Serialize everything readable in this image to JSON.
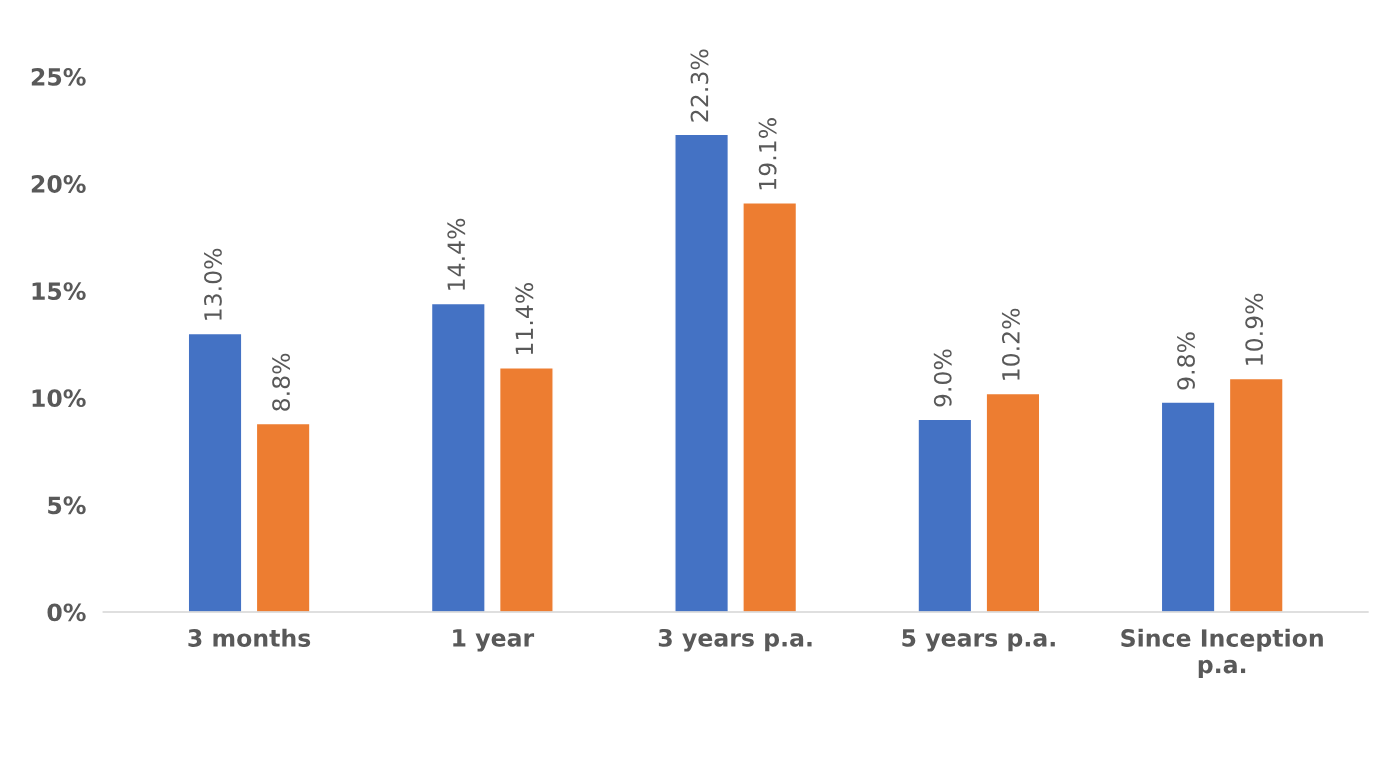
{
  "chart_data": {
    "type": "bar",
    "categories": [
      "3 months",
      "1 year",
      "3 years p.a.",
      "5 years p.a.",
      "Since Inception\np.a."
    ],
    "series": [
      {
        "color": "#4472c4",
        "values": [
          13.0,
          14.4,
          22.3,
          9.0,
          9.8
        ],
        "value_labels": [
          "13.0%",
          "14.4%",
          "22.3%",
          "9.0%",
          "9.8%"
        ]
      },
      {
        "color": "#ed7d31",
        "values": [
          8.8,
          11.4,
          19.1,
          10.2,
          10.9
        ],
        "value_labels": [
          "8.8%",
          "11.4%",
          "19.1%",
          "10.2%",
          "10.9%"
        ]
      }
    ],
    "ylim": [
      0,
      25
    ],
    "yticks": [
      {
        "value": 0,
        "label": "0%"
      },
      {
        "value": 5,
        "label": "5%"
      },
      {
        "value": 10,
        "label": "10%"
      },
      {
        "value": 15,
        "label": "15%"
      },
      {
        "value": 20,
        "label": "20%"
      },
      {
        "value": 25,
        "label": "25%"
      }
    ],
    "grid": false
  }
}
